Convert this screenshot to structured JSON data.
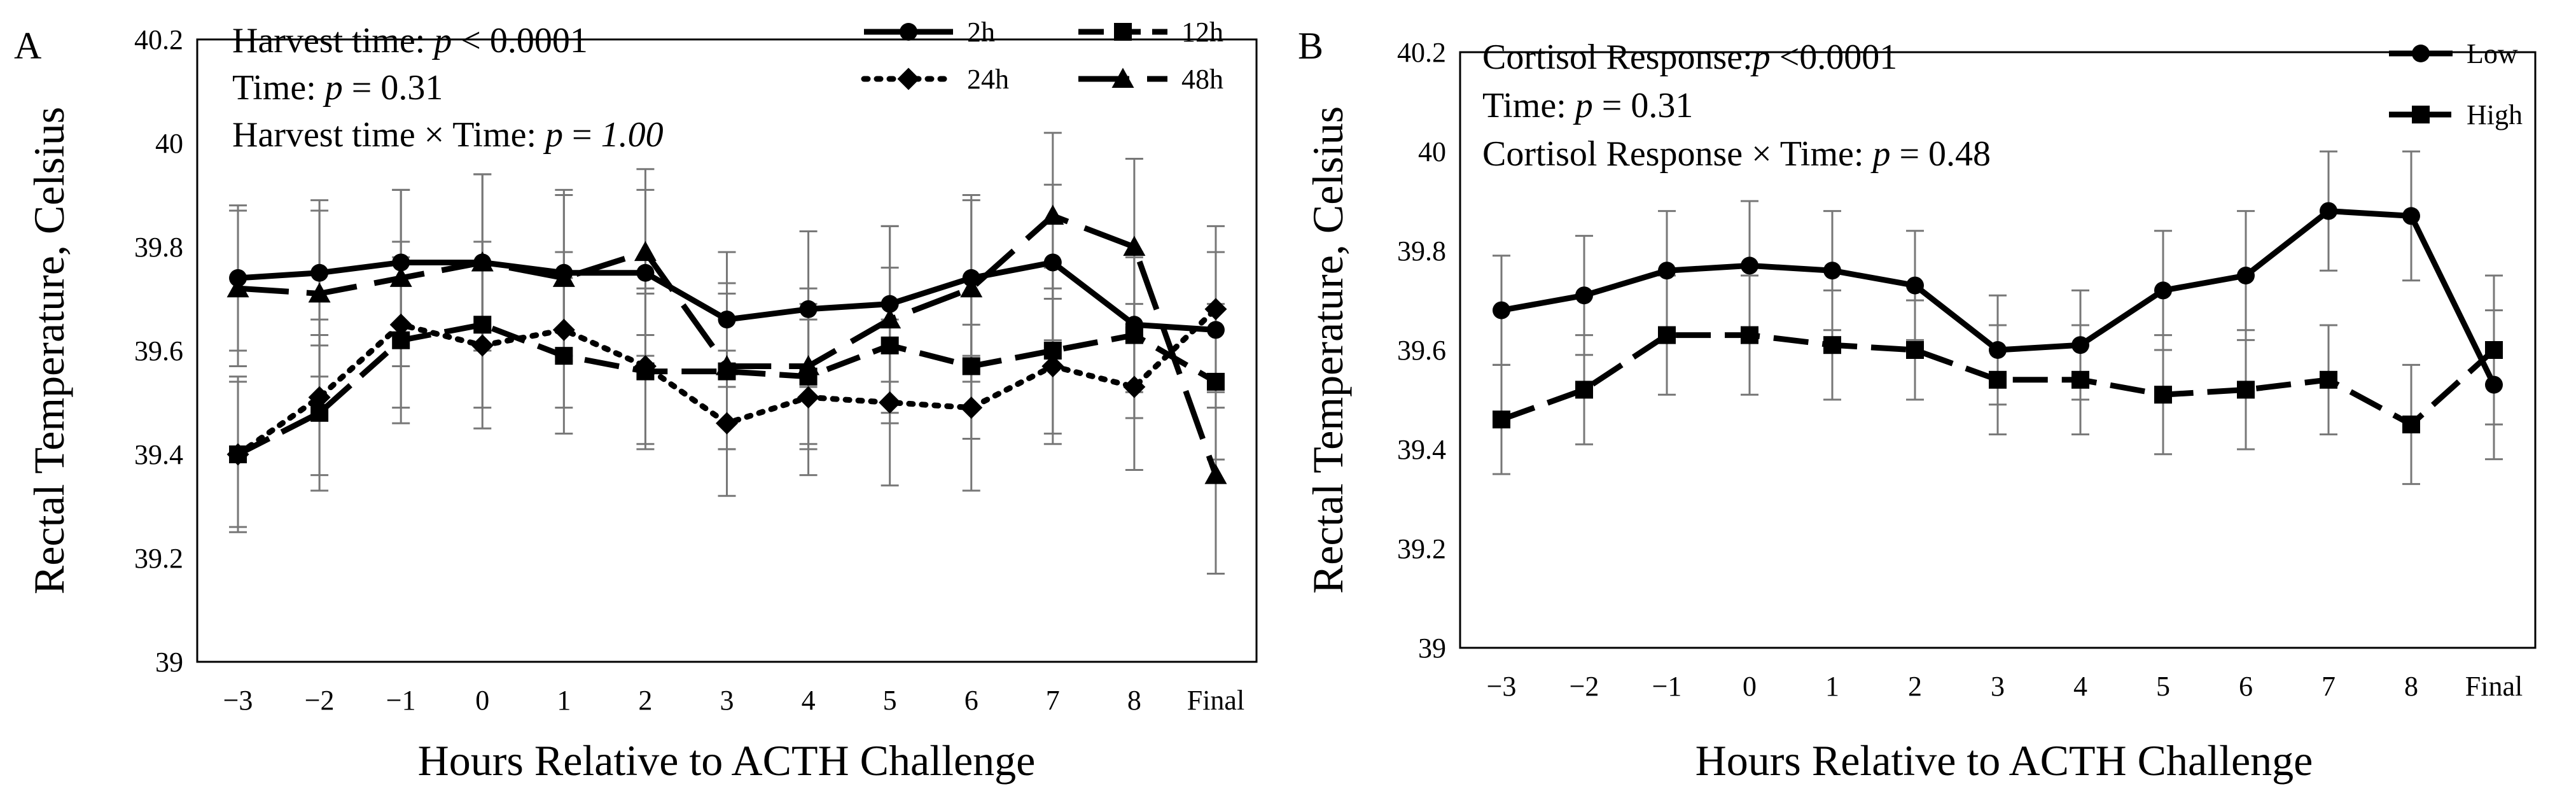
{
  "chart_data": [
    {
      "type": "line",
      "panel_letter": "A",
      "xlabel": "Hours Relative to ACTH Challenge",
      "ylabel": "Rectal Temperature, Celsius",
      "categories": [
        "−3",
        "−2",
        "−1",
        "0",
        "1",
        "2",
        "3",
        "4",
        "5",
        "6",
        "7",
        "8",
        "Final"
      ],
      "ylim": [
        39,
        40.2
      ],
      "yticks": [
        "39",
        "39.2",
        "39.4",
        "39.6",
        "39.8",
        "40",
        "40.2"
      ],
      "grid": false,
      "legend_position": "top-right",
      "annotations": [
        {
          "parts": [
            {
              "t": "Harvest time: "
            },
            {
              "t": "p",
              "i": true
            },
            {
              "t": " < 0.0001"
            }
          ]
        },
        {
          "parts": [
            {
              "t": "Time: "
            },
            {
              "t": "p",
              "i": true
            },
            {
              "t": " = 0.31"
            }
          ]
        },
        {
          "parts": [
            {
              "t": "Harvest time × Time: "
            },
            {
              "t": "p",
              "i": true
            },
            {
              "t": " = "
            },
            {
              "t": "1.00",
              "i": true
            }
          ]
        }
      ],
      "series": [
        {
          "name": "2h",
          "marker": "circle",
          "line": "solid",
          "values": [
            39.74,
            39.75,
            39.77,
            39.77,
            39.75,
            39.75,
            39.66,
            39.68,
            39.69,
            39.74,
            39.77,
            39.65,
            39.64
          ],
          "errors": [
            0.14,
            0.14,
            0.14,
            0.17,
            0.16,
            0.16,
            0.13,
            0.15,
            0.15,
            0.15,
            0.15,
            0.13,
            0.15
          ]
        },
        {
          "name": "12h",
          "marker": "square",
          "line": "dashed",
          "values": [
            39.4,
            39.48,
            39.62,
            39.65,
            39.59,
            39.56,
            39.56,
            39.55,
            39.61,
            39.57,
            39.6,
            39.63,
            39.54
          ],
          "errors": [
            0.15,
            0.15,
            0.16,
            0.16,
            0.15,
            0.15,
            0.15,
            0.14,
            0.15,
            0.14,
            0.16,
            0.16,
            0.15
          ]
        },
        {
          "name": "24h",
          "marker": "diamond",
          "line": "dotted",
          "values": [
            39.4,
            39.51,
            39.65,
            39.61,
            39.64,
            39.57,
            39.46,
            39.51,
            39.5,
            39.49,
            39.57,
            39.53,
            39.68
          ],
          "errors": [
            0.14,
            0.15,
            0.16,
            0.16,
            0.15,
            0.15,
            0.14,
            0.15,
            0.16,
            0.16,
            0.15,
            0.16,
            0.16
          ]
        },
        {
          "name": "48h",
          "marker": "triangle",
          "line": "long-dash",
          "values": [
            39.72,
            39.71,
            39.74,
            39.77,
            39.74,
            39.79,
            39.57,
            39.57,
            39.66,
            39.72,
            39.86,
            39.8,
            39.36
          ],
          "errors": [
            0.15,
            0.16,
            0.17,
            0.17,
            0.16,
            0.16,
            0.16,
            0.15,
            0.18,
            0.18,
            0.16,
            0.17,
            0.19
          ]
        }
      ]
    },
    {
      "type": "line",
      "panel_letter": "B",
      "xlabel": "Hours Relative to ACTH Challenge",
      "ylabel": "Rectal Temperature, Celsius",
      "categories": [
        "−3",
        "−2",
        "−1",
        "0",
        "1",
        "2",
        "3",
        "4",
        "5",
        "6",
        "7",
        "8",
        "Final"
      ],
      "ylim": [
        39,
        40.2
      ],
      "yticks": [
        "39",
        "39.2",
        "39.4",
        "39.6",
        "39.8",
        "40",
        "40.2"
      ],
      "grid": false,
      "legend_position": "top-right",
      "annotations": [
        {
          "parts": [
            {
              "t": "Cortisol Response:"
            },
            {
              "t": "p",
              "i": true
            },
            {
              "t": " <0.0001"
            }
          ]
        },
        {
          "parts": [
            {
              "t": "Time: "
            },
            {
              "t": "p",
              "i": true
            },
            {
              "t": " = 0.31"
            }
          ]
        },
        {
          "parts": [
            {
              "t": "Cortisol Response × Time: "
            },
            {
              "t": "p",
              "i": true
            },
            {
              "t": " = 0.48"
            }
          ]
        }
      ],
      "series": [
        {
          "name": "Low",
          "marker": "circle",
          "line": "solid",
          "values": [
            39.68,
            39.71,
            39.76,
            39.77,
            39.76,
            39.73,
            39.6,
            39.61,
            39.72,
            39.75,
            39.88,
            39.87,
            39.53
          ],
          "errors": [
            0.11,
            0.12,
            0.12,
            0.13,
            0.12,
            0.11,
            0.11,
            0.11,
            0.12,
            0.13,
            0.12,
            0.13,
            0.15
          ]
        },
        {
          "name": "High",
          "marker": "square",
          "line": "dashed",
          "values": [
            39.46,
            39.52,
            39.63,
            39.63,
            39.61,
            39.6,
            39.54,
            39.54,
            39.51,
            39.52,
            39.54,
            39.45,
            39.6
          ],
          "errors": [
            0.11,
            0.11,
            0.12,
            0.12,
            0.11,
            0.1,
            0.11,
            0.11,
            0.12,
            0.12,
            0.11,
            0.12,
            0.15
          ]
        }
      ]
    }
  ]
}
